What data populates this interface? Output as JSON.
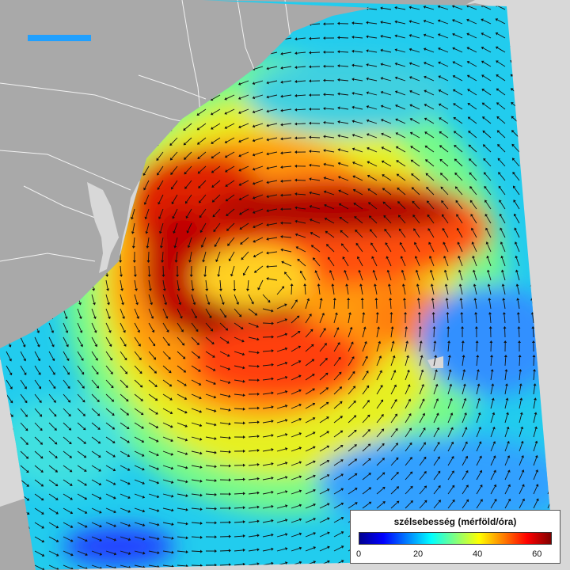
{
  "legend": {
    "title": "szélsebesség (mérföld/óra)",
    "min": 0,
    "max": 65,
    "ticks": [
      0,
      20,
      40,
      60
    ],
    "colorscale": [
      "#00008f",
      "#0000ff",
      "#0080ff",
      "#00ffff",
      "#80ff80",
      "#ffff00",
      "#ff8000",
      "#ff0000",
      "#800000"
    ]
  },
  "colors": {
    "land": "#a9a9a9",
    "background": "#d8d8d8",
    "borders": "#ffffff",
    "arrows": "#111111"
  },
  "icons": [
    "wind-vector-arrow"
  ]
}
